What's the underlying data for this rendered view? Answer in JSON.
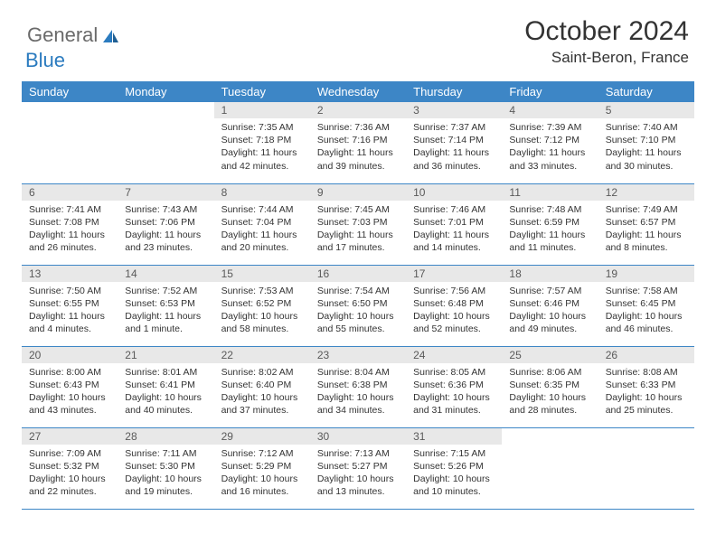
{
  "header": {
    "logo_general": "General",
    "logo_blue": "Blue",
    "month_title": "October 2024",
    "location": "Saint-Beron, France"
  },
  "colors": {
    "header_blue": "#3d86c6",
    "daynum_bg": "#e8e8e8",
    "text": "#333333",
    "logo_gray": "#6a6a6a",
    "logo_blue": "#2b7bbf"
  },
  "day_names": [
    "Sunday",
    "Monday",
    "Tuesday",
    "Wednesday",
    "Thursday",
    "Friday",
    "Saturday"
  ],
  "weeks": [
    [
      null,
      null,
      {
        "n": "1",
        "sunrise": "7:35 AM",
        "sunset": "7:18 PM",
        "daylight": "11 hours and 42 minutes."
      },
      {
        "n": "2",
        "sunrise": "7:36 AM",
        "sunset": "7:16 PM",
        "daylight": "11 hours and 39 minutes."
      },
      {
        "n": "3",
        "sunrise": "7:37 AM",
        "sunset": "7:14 PM",
        "daylight": "11 hours and 36 minutes."
      },
      {
        "n": "4",
        "sunrise": "7:39 AM",
        "sunset": "7:12 PM",
        "daylight": "11 hours and 33 minutes."
      },
      {
        "n": "5",
        "sunrise": "7:40 AM",
        "sunset": "7:10 PM",
        "daylight": "11 hours and 30 minutes."
      }
    ],
    [
      {
        "n": "6",
        "sunrise": "7:41 AM",
        "sunset": "7:08 PM",
        "daylight": "11 hours and 26 minutes."
      },
      {
        "n": "7",
        "sunrise": "7:43 AM",
        "sunset": "7:06 PM",
        "daylight": "11 hours and 23 minutes."
      },
      {
        "n": "8",
        "sunrise": "7:44 AM",
        "sunset": "7:04 PM",
        "daylight": "11 hours and 20 minutes."
      },
      {
        "n": "9",
        "sunrise": "7:45 AM",
        "sunset": "7:03 PM",
        "daylight": "11 hours and 17 minutes."
      },
      {
        "n": "10",
        "sunrise": "7:46 AM",
        "sunset": "7:01 PM",
        "daylight": "11 hours and 14 minutes."
      },
      {
        "n": "11",
        "sunrise": "7:48 AM",
        "sunset": "6:59 PM",
        "daylight": "11 hours and 11 minutes."
      },
      {
        "n": "12",
        "sunrise": "7:49 AM",
        "sunset": "6:57 PM",
        "daylight": "11 hours and 8 minutes."
      }
    ],
    [
      {
        "n": "13",
        "sunrise": "7:50 AM",
        "sunset": "6:55 PM",
        "daylight": "11 hours and 4 minutes."
      },
      {
        "n": "14",
        "sunrise": "7:52 AM",
        "sunset": "6:53 PM",
        "daylight": "11 hours and 1 minute."
      },
      {
        "n": "15",
        "sunrise": "7:53 AM",
        "sunset": "6:52 PM",
        "daylight": "10 hours and 58 minutes."
      },
      {
        "n": "16",
        "sunrise": "7:54 AM",
        "sunset": "6:50 PM",
        "daylight": "10 hours and 55 minutes."
      },
      {
        "n": "17",
        "sunrise": "7:56 AM",
        "sunset": "6:48 PM",
        "daylight": "10 hours and 52 minutes."
      },
      {
        "n": "18",
        "sunrise": "7:57 AM",
        "sunset": "6:46 PM",
        "daylight": "10 hours and 49 minutes."
      },
      {
        "n": "19",
        "sunrise": "7:58 AM",
        "sunset": "6:45 PM",
        "daylight": "10 hours and 46 minutes."
      }
    ],
    [
      {
        "n": "20",
        "sunrise": "8:00 AM",
        "sunset": "6:43 PM",
        "daylight": "10 hours and 43 minutes."
      },
      {
        "n": "21",
        "sunrise": "8:01 AM",
        "sunset": "6:41 PM",
        "daylight": "10 hours and 40 minutes."
      },
      {
        "n": "22",
        "sunrise": "8:02 AM",
        "sunset": "6:40 PM",
        "daylight": "10 hours and 37 minutes."
      },
      {
        "n": "23",
        "sunrise": "8:04 AM",
        "sunset": "6:38 PM",
        "daylight": "10 hours and 34 minutes."
      },
      {
        "n": "24",
        "sunrise": "8:05 AM",
        "sunset": "6:36 PM",
        "daylight": "10 hours and 31 minutes."
      },
      {
        "n": "25",
        "sunrise": "8:06 AM",
        "sunset": "6:35 PM",
        "daylight": "10 hours and 28 minutes."
      },
      {
        "n": "26",
        "sunrise": "8:08 AM",
        "sunset": "6:33 PM",
        "daylight": "10 hours and 25 minutes."
      }
    ],
    [
      {
        "n": "27",
        "sunrise": "7:09 AM",
        "sunset": "5:32 PM",
        "daylight": "10 hours and 22 minutes."
      },
      {
        "n": "28",
        "sunrise": "7:11 AM",
        "sunset": "5:30 PM",
        "daylight": "10 hours and 19 minutes."
      },
      {
        "n": "29",
        "sunrise": "7:12 AM",
        "sunset": "5:29 PM",
        "daylight": "10 hours and 16 minutes."
      },
      {
        "n": "30",
        "sunrise": "7:13 AM",
        "sunset": "5:27 PM",
        "daylight": "10 hours and 13 minutes."
      },
      {
        "n": "31",
        "sunrise": "7:15 AM",
        "sunset": "5:26 PM",
        "daylight": "10 hours and 10 minutes."
      },
      null,
      null
    ]
  ]
}
